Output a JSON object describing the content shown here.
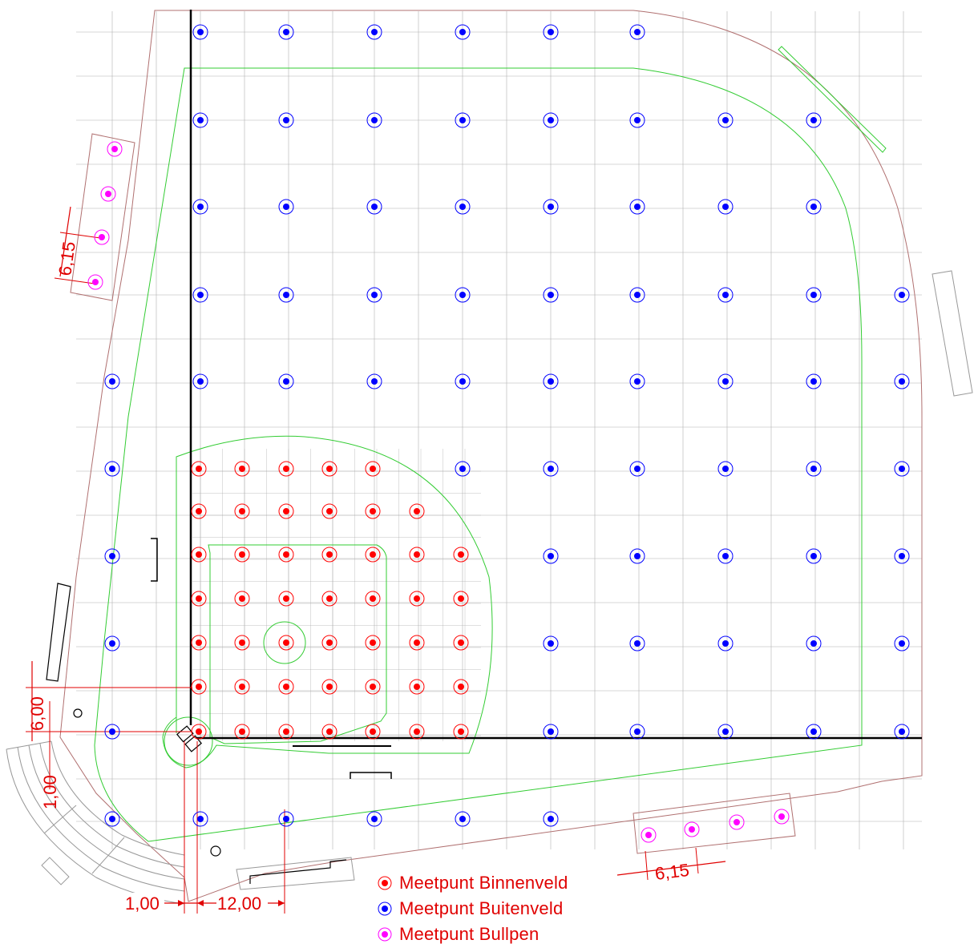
{
  "colors": {
    "binnenveld": "#ff0000",
    "buitenveld": "#0000ff",
    "bullpen": "#ff00ff",
    "boundary": "#b07070",
    "field_line": "#33cc33",
    "grid": "#b0b0b0",
    "dimension": "#e00000",
    "baseline": "#000000"
  },
  "dimensions": {
    "bullpen_left_spacing": "6,15",
    "bullpen_right_spacing": "6,15",
    "offset_vertical": "6,00",
    "offset_vertical_small": "1,00",
    "offset_horizontal_small": "1,00",
    "grid_spacing": "12,00"
  },
  "legend": [
    {
      "key": "binnenveld",
      "label": "Meetpunt Binnenveld"
    },
    {
      "key": "buitenveld",
      "label": "Meetpunt Buitenveld"
    },
    {
      "key": "bullpen",
      "label": "Meetpunt Bullpen"
    }
  ]
}
